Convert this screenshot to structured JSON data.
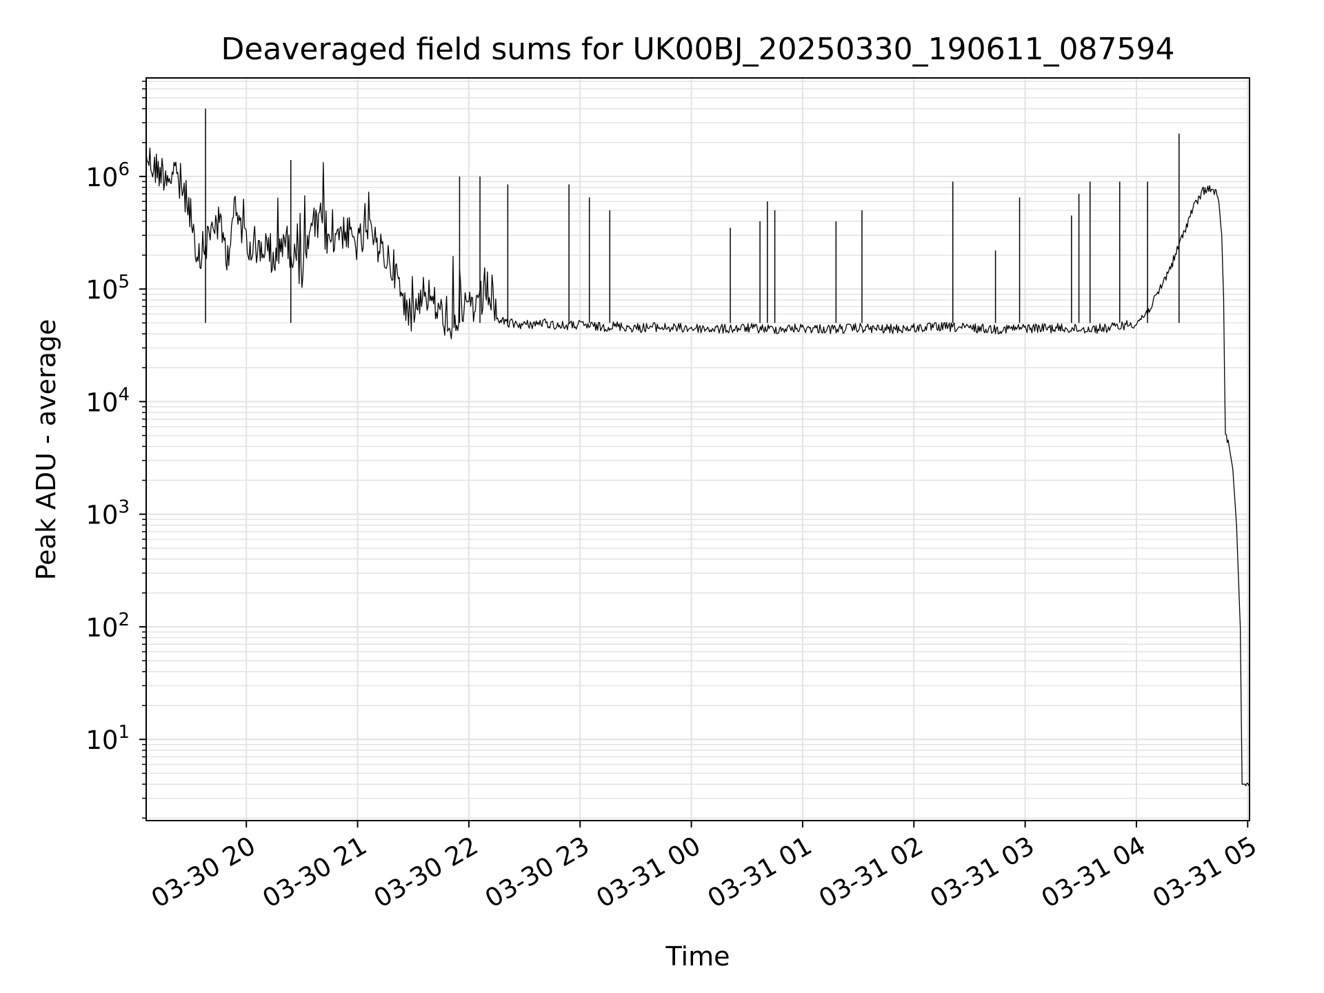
{
  "chart_data": {
    "type": "line",
    "title": "Deaveraged field sums for UK00BJ_20250330_190611_087594",
    "xlabel": "Time",
    "ylabel": "Peak ADU - average",
    "y_scale": "log",
    "xlim": [
      "2025-03-30 19:06",
      "2025-03-31 05:01"
    ],
    "ylim": [
      1.9,
      7500000
    ],
    "grid": true,
    "line_color": "#000000",
    "grid_color": "#e3e3e3",
    "x_ticks": [
      {
        "value": "2025-03-30 20:00",
        "label": "03-30 20"
      },
      {
        "value": "2025-03-30 21:00",
        "label": "03-30 21"
      },
      {
        "value": "2025-03-30 22:00",
        "label": "03-30 22"
      },
      {
        "value": "2025-03-30 23:00",
        "label": "03-30 23"
      },
      {
        "value": "2025-03-31 00:00",
        "label": "03-31 00"
      },
      {
        "value": "2025-03-31 01:00",
        "label": "03-31 01"
      },
      {
        "value": "2025-03-31 02:00",
        "label": "03-31 02"
      },
      {
        "value": "2025-03-31 03:00",
        "label": "03-31 03"
      },
      {
        "value": "2025-03-31 04:00",
        "label": "03-31 04"
      },
      {
        "value": "2025-03-31 05:00",
        "label": "03-31 05"
      }
    ],
    "y_ticks": [
      {
        "value": 10,
        "base": "10",
        "exp": "1"
      },
      {
        "value": 100,
        "base": "10",
        "exp": "2"
      },
      {
        "value": 1000,
        "base": "10",
        "exp": "3"
      },
      {
        "value": 10000,
        "base": "10",
        "exp": "4"
      },
      {
        "value": 100000,
        "base": "10",
        "exp": "5"
      },
      {
        "value": 1000000,
        "base": "10",
        "exp": "6"
      }
    ],
    "series": [
      {
        "x": [
          "2025-03-30 19:06",
          "2025-03-30 19:10",
          "2025-03-30 19:15",
          "2025-03-30 19:20",
          "2025-03-30 19:25",
          "2025-03-30 19:30",
          "2025-03-30 19:33",
          "2025-03-30 19:36",
          "2025-03-30 19:40",
          "2025-03-30 19:43",
          "2025-03-30 19:46",
          "2025-03-30 19:50",
          "2025-03-30 19:53",
          "2025-03-30 19:56",
          "2025-03-30 20:00",
          "2025-03-30 20:05",
          "2025-03-30 20:10",
          "2025-03-30 20:15",
          "2025-03-30 20:20",
          "2025-03-30 20:25",
          "2025-03-30 20:30",
          "2025-03-30 20:35",
          "2025-03-30 20:40",
          "2025-03-30 20:45",
          "2025-03-30 20:50",
          "2025-03-30 20:55",
          "2025-03-30 21:00",
          "2025-03-30 21:05",
          "2025-03-30 21:10",
          "2025-03-30 21:15",
          "2025-03-30 21:20",
          "2025-03-30 21:25",
          "2025-03-30 21:30",
          "2025-03-30 21:35",
          "2025-03-30 21:40",
          "2025-03-30 21:45",
          "2025-03-30 21:50",
          "2025-03-30 21:55",
          "2025-03-30 22:00",
          "2025-03-30 22:05",
          "2025-03-30 22:10",
          "2025-03-30 22:15",
          "2025-03-30 22:20",
          "2025-03-30 22:30",
          "2025-03-30 22:40",
          "2025-03-30 22:50",
          "2025-03-30 23:00",
          "2025-03-30 23:10",
          "2025-03-30 23:20",
          "2025-03-30 23:30",
          "2025-03-30 23:40",
          "2025-03-30 23:50",
          "2025-03-31 00:00",
          "2025-03-31 00:15",
          "2025-03-31 00:30",
          "2025-03-31 00:45",
          "2025-03-31 01:00",
          "2025-03-31 01:15",
          "2025-03-31 01:30",
          "2025-03-31 01:45",
          "2025-03-31 02:00",
          "2025-03-31 02:15",
          "2025-03-31 02:30",
          "2025-03-31 02:45",
          "2025-03-31 03:00",
          "2025-03-31 03:15",
          "2025-03-31 03:30",
          "2025-03-31 03:45",
          "2025-03-31 04:00",
          "2025-03-31 04:05",
          "2025-03-31 04:10",
          "2025-03-31 04:15",
          "2025-03-31 04:20",
          "2025-03-31 04:25",
          "2025-03-31 04:30",
          "2025-03-31 04:35",
          "2025-03-31 04:38",
          "2025-03-31 04:41",
          "2025-03-31 04:43",
          "2025-03-31 04:45",
          "2025-03-31 04:46",
          "2025-03-31 04:47",
          "2025-03-31 04:48",
          "2025-03-31 04:50",
          "2025-03-31 04:52",
          "2025-03-31 04:54",
          "2025-03-31 04:56",
          "2025-03-31 04:57",
          "2025-03-31 04:58",
          "2025-03-31 04:59",
          "2025-03-31 05:00",
          "2025-03-31 05:01"
        ],
        "y": [
          1600000,
          1200000,
          1100000,
          1000000,
          800000,
          500000,
          150000,
          200000,
          300000,
          400000,
          350000,
          200000,
          500000,
          400000,
          300000,
          200000,
          250000,
          150000,
          300000,
          200000,
          150000,
          300000,
          400000,
          250000,
          350000,
          300000,
          250000,
          300000,
          250000,
          200000,
          150000,
          70000,
          60000,
          100000,
          80000,
          60000,
          50000,
          60000,
          80000,
          60000,
          100000,
          55000,
          50000,
          48000,
          50000,
          47000,
          48000,
          46000,
          47000,
          45000,
          46000,
          45000,
          45000,
          44000,
          45000,
          44000,
          45000,
          44000,
          45000,
          44000,
          45000,
          46000,
          45000,
          44000,
          45000,
          45000,
          44000,
          45000,
          50000,
          60000,
          80000,
          120000,
          180000,
          300000,
          500000,
          700000,
          800000,
          750000,
          700000,
          500000,
          300000,
          80000,
          5000,
          4000,
          2500,
          800,
          100,
          4,
          4,
          4,
          4,
          4
        ]
      }
    ],
    "spikes": [
      {
        "x": "2025-03-30 19:38",
        "y": 4000000
      },
      {
        "x": "2025-03-30 20:24",
        "y": 1400000
      },
      {
        "x": "2025-03-30 21:55",
        "y": 1000000
      },
      {
        "x": "2025-03-30 22:06",
        "y": 1000000
      },
      {
        "x": "2025-03-30 22:21",
        "y": 850000
      },
      {
        "x": "2025-03-30 22:54",
        "y": 850000
      },
      {
        "x": "2025-03-30 23:05",
        "y": 650000
      },
      {
        "x": "2025-03-30 23:16",
        "y": 500000
      },
      {
        "x": "2025-03-31 00:21",
        "y": 350000
      },
      {
        "x": "2025-03-31 00:37",
        "y": 400000
      },
      {
        "x": "2025-03-31 00:41",
        "y": 600000
      },
      {
        "x": "2025-03-31 00:45",
        "y": 500000
      },
      {
        "x": "2025-03-31 01:18",
        "y": 400000
      },
      {
        "x": "2025-03-31 01:32",
        "y": 500000
      },
      {
        "x": "2025-03-31 02:21",
        "y": 900000
      },
      {
        "x": "2025-03-31 02:44",
        "y": 220000
      },
      {
        "x": "2025-03-31 02:57",
        "y": 650000
      },
      {
        "x": "2025-03-31 03:25",
        "y": 450000
      },
      {
        "x": "2025-03-31 03:29",
        "y": 700000
      },
      {
        "x": "2025-03-31 03:35",
        "y": 900000
      },
      {
        "x": "2025-03-31 03:51",
        "y": 900000
      },
      {
        "x": "2025-03-31 04:06",
        "y": 900000
      },
      {
        "x": "2025-03-31 04:23",
        "y": 2400000
      }
    ]
  }
}
